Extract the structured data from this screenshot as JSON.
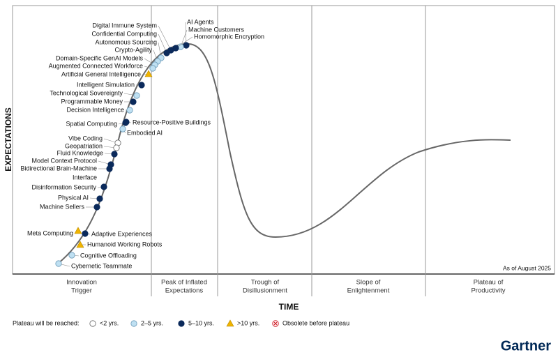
{
  "y_label": "EXPECTATIONS",
  "x_label": "TIME",
  "note": "As of August 2025",
  "brand": "Gartner",
  "phases": [
    [
      "Innovation",
      "Trigger"
    ],
    [
      "Peak of Inflated",
      "Expectations"
    ],
    [
      "Trough of",
      "Disillusionment"
    ],
    [
      "Slope of",
      "Enlightenment"
    ],
    [
      "Plateau of",
      "Productivity"
    ]
  ],
  "legend": {
    "title": "Plateau will be reached:",
    "items": [
      "<2 yrs.",
      "2–5 yrs.",
      "5–10 yrs.",
      ">10 yrs.",
      "Obsolete before plateau"
    ]
  },
  "technologies": [
    {
      "label": "AI Agents",
      "plateau": 2
    },
    {
      "label": "Machine Customers",
      "plateau": 1
    },
    {
      "label": "Homomorphic Encryption",
      "plateau": 2
    },
    {
      "label": "Digital Immune System",
      "plateau": 2
    },
    {
      "label": "Confidential Computing",
      "plateau": 2
    },
    {
      "label": "Autonomous Sourcing",
      "plateau": 1
    },
    {
      "label": "Crypto-Agility",
      "plateau": 1
    },
    {
      "label": "Domain-Specific GenAI Models",
      "plateau": 1
    },
    {
      "label": "Augmented Connected Workforce",
      "plateau": 1
    },
    {
      "label": "Artificial General Intelligence",
      "plateau": 3
    },
    {
      "label": "Intelligent Simulation",
      "plateau": 2
    },
    {
      "label": "Technological Sovereignty",
      "plateau": 1
    },
    {
      "label": "Programmable Money",
      "plateau": 2
    },
    {
      "label": "Decision Intelligence",
      "plateau": 1
    },
    {
      "label": "Spatial Computing",
      "plateau": 2
    },
    {
      "label": "Resource-Positive Buildings",
      "plateau": 2
    },
    {
      "label": "Embodied AI",
      "plateau": 1
    },
    {
      "label": "Vibe Coding",
      "plateau": 0
    },
    {
      "label": "Geopatriation",
      "plateau": 0
    },
    {
      "label": "Fluid Knowledge",
      "plateau": 2
    },
    {
      "label": "Model Context Protocol",
      "plateau": 2
    },
    {
      "label": [
        "Bidirectional Brain-Machine",
        "Interface"
      ],
      "plateau": 2
    },
    {
      "label": "Disinformation Security",
      "plateau": 2
    },
    {
      "label": "Physical AI",
      "plateau": 2
    },
    {
      "label": "Machine Sellers",
      "plateau": 2
    },
    {
      "label": "Meta Computing",
      "plateau": 3
    },
    {
      "label": "Adaptive Experiences",
      "plateau": 2
    },
    {
      "label": "Humanoid Working Robots",
      "plateau": 3
    },
    {
      "label": "Cognitive Offloading",
      "plateau": 1
    },
    {
      "label": "Cybernetic Teammate",
      "plateau": 1
    }
  ]
}
